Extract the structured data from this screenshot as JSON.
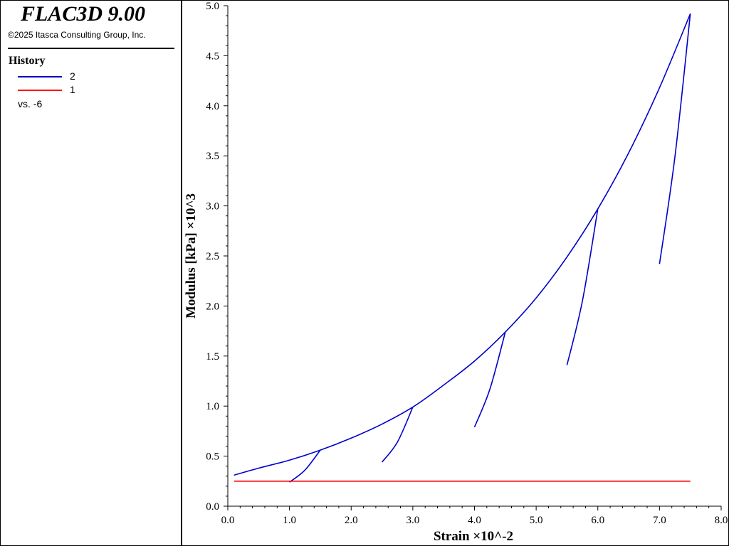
{
  "app": {
    "title": "FLAC3D 9.00",
    "copyright": "©2025 Itasca Consulting Group, Inc."
  },
  "legend": {
    "heading": "History",
    "entries": [
      {
        "label": "2",
        "color": "#0000cc"
      },
      {
        "label": "1",
        "color": "#ff0000"
      }
    ],
    "vs_label": "vs. -6"
  },
  "chart_data": {
    "type": "line",
    "xlabel": "Strain ×10^-2",
    "ylabel": "Modulus [kPa] ×10^3",
    "xlim": [
      0.0,
      8.0
    ],
    "ylim": [
      0.0,
      5.0
    ],
    "x_ticks": [
      "0.0",
      "1.0",
      "2.0",
      "3.0",
      "4.0",
      "5.0",
      "6.0",
      "7.0",
      "8.0"
    ],
    "y_ticks": [
      "0.0",
      "0.5",
      "1.0",
      "1.5",
      "2.0",
      "2.5",
      "3.0",
      "3.5",
      "4.0",
      "4.5",
      "5.0"
    ],
    "grid": false,
    "series": [
      {
        "name": "2",
        "color": "#0000cc",
        "segments": [
          {
            "x": [
              0.1,
              0.5,
              1.0,
              1.5,
              2.0,
              2.5,
              3.0,
              3.5,
              4.0,
              4.5,
              5.0,
              5.5,
              6.0,
              6.5,
              7.0,
              7.5
            ],
            "y": [
              0.31,
              0.38,
              0.46,
              0.56,
              0.68,
              0.82,
              0.99,
              1.21,
              1.45,
              1.74,
              2.08,
              2.49,
              2.97,
              3.53,
              4.18,
              4.92
            ]
          },
          {
            "x": [
              1.0,
              1.25,
              1.5
            ],
            "y": [
              0.24,
              0.36,
              0.56
            ]
          },
          {
            "x": [
              2.5,
              2.75,
              3.0
            ],
            "y": [
              0.44,
              0.64,
              0.99
            ]
          },
          {
            "x": [
              4.0,
              4.25,
              4.5
            ],
            "y": [
              0.79,
              1.17,
              1.74
            ]
          },
          {
            "x": [
              5.5,
              5.75,
              6.0
            ],
            "y": [
              1.41,
              2.05,
              2.97
            ]
          },
          {
            "x": [
              7.0,
              7.25,
              7.5
            ],
            "y": [
              2.42,
              3.49,
              4.92
            ]
          }
        ]
      },
      {
        "name": "1",
        "color": "#ff0000",
        "segments": [
          {
            "x": [
              0.1,
              7.5
            ],
            "y": [
              0.25,
              0.25
            ]
          }
        ]
      }
    ]
  }
}
